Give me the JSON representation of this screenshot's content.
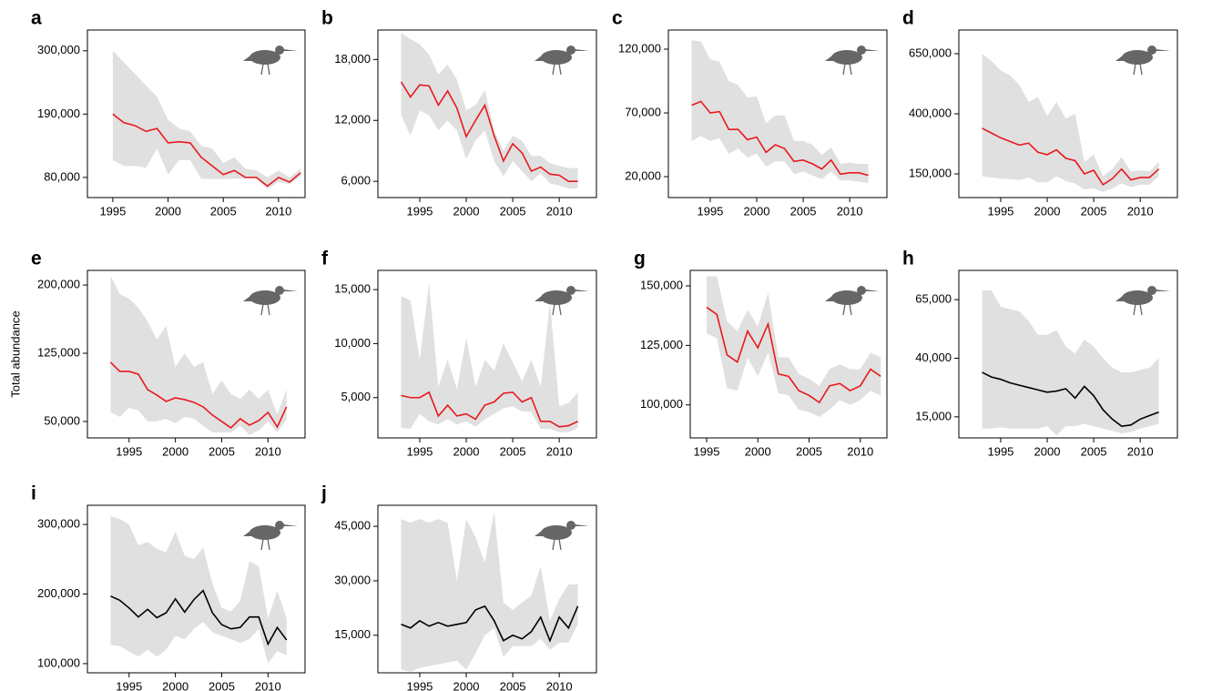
{
  "chart_data": [
    {
      "type": "line",
      "title": "a",
      "x": [
        1995,
        1996,
        1997,
        1998,
        1999,
        2000,
        2001,
        2002,
        2003,
        2004,
        2005,
        2006,
        2007,
        2008,
        2009,
        2010,
        2011,
        2012
      ],
      "values": [
        190000,
        175000,
        170000,
        160000,
        165000,
        140000,
        142000,
        140000,
        115000,
        100000,
        85000,
        92000,
        80000,
        80000,
        65000,
        80000,
        72000,
        88000
      ],
      "lower": [
        110000,
        100000,
        100000,
        97000,
        130000,
        85000,
        110000,
        110000,
        78000,
        77000,
        77000,
        78000,
        78000,
        78000,
        60000,
        72000,
        68000,
        82000
      ],
      "upper": [
        300000,
        280000,
        260000,
        240000,
        220000,
        180000,
        165000,
        160000,
        135000,
        130000,
        105000,
        115000,
        95000,
        92000,
        80000,
        92000,
        80000,
        95000
      ],
      "color": "#e8191c",
      "band_color": "#e0e0e0",
      "xlim": [
        1992.7,
        2012.4
      ],
      "xticks": [
        1995,
        2000,
        2005,
        2010
      ],
      "ylim": [
        45000,
        336000
      ],
      "yticks": [
        {
          "value": 80000,
          "label": "80,000"
        },
        {
          "value": 190000,
          "label": "190,000"
        },
        {
          "value": 300000,
          "label": "300,000"
        }
      ]
    },
    {
      "type": "line",
      "title": "b",
      "x": [
        1993,
        1994,
        1995,
        1996,
        1997,
        1998,
        1999,
        2000,
        2001,
        2002,
        2003,
        2004,
        2005,
        2006,
        2007,
        2008,
        2009,
        2010,
        2011,
        2012
      ],
      "values": [
        15800,
        14300,
        15500,
        15400,
        13500,
        14900,
        13200,
        10400,
        12000,
        13500,
        10500,
        8000,
        9700,
        8800,
        7000,
        7400,
        6700,
        6600,
        6000,
        6000
      ],
      "lower": [
        12500,
        10500,
        13000,
        12500,
        11000,
        12000,
        11000,
        8200,
        10000,
        11000,
        8000,
        6500,
        8000,
        7000,
        6000,
        6800,
        5800,
        5600,
        5300,
        5300
      ],
      "upper": [
        20600,
        20000,
        19500,
        18500,
        16500,
        17500,
        16000,
        13000,
        13500,
        15000,
        11000,
        9000,
        10500,
        10000,
        8500,
        8500,
        7800,
        7500,
        7300,
        7300
      ],
      "color": "#e8191c",
      "band_color": "#e0e0e0",
      "xlim": [
        1990.5,
        2014
      ],
      "xticks": [
        1995,
        2000,
        2005,
        2010
      ],
      "ylim": [
        4400,
        20900
      ],
      "yticks": [
        {
          "value": 6000,
          "label": "6,000"
        },
        {
          "value": 12000,
          "label": "12,000"
        },
        {
          "value": 18000,
          "label": "18,000"
        }
      ]
    },
    {
      "type": "line",
      "title": "c",
      "x": [
        1993,
        1994,
        1995,
        1996,
        1997,
        1998,
        1999,
        2000,
        2001,
        2002,
        2003,
        2004,
        2005,
        2006,
        2007,
        2008,
        2009,
        2010,
        2011,
        2012
      ],
      "values": [
        76000,
        79000,
        70000,
        71000,
        57000,
        57000,
        49000,
        51000,
        39000,
        45000,
        42000,
        32000,
        33000,
        30000,
        26000,
        33000,
        22000,
        23000,
        23000,
        21000
      ],
      "lower": [
        48000,
        52000,
        48000,
        50000,
        38000,
        42000,
        35000,
        38000,
        28000,
        32000,
        32000,
        22000,
        24000,
        21000,
        18000,
        24000,
        17000,
        17000,
        16000,
        15000
      ],
      "upper": [
        127000,
        126000,
        112000,
        110000,
        95000,
        92000,
        82000,
        83000,
        62000,
        68000,
        68000,
        48000,
        48000,
        45000,
        37000,
        43000,
        30000,
        31000,
        30000,
        30000
      ],
      "color": "#e8191c",
      "band_color": "#e0e0e0",
      "xlim": [
        1990.5,
        2014
      ],
      "xticks": [
        1995,
        2000,
        2005,
        2010
      ],
      "ylim": [
        3600,
        135000
      ],
      "yticks": [
        {
          "value": 20000,
          "label": "20,000"
        },
        {
          "value": 70000,
          "label": "70,000"
        },
        {
          "value": 120000,
          "label": "120,000"
        }
      ]
    },
    {
      "type": "line",
      "title": "d",
      "x": [
        1993,
        1994,
        1995,
        1996,
        1997,
        1998,
        1999,
        2000,
        2001,
        2002,
        2003,
        2004,
        2005,
        2006,
        2007,
        2008,
        2009,
        2010,
        2011,
        2012
      ],
      "values": [
        340000,
        320000,
        300000,
        285000,
        270000,
        278000,
        240000,
        230000,
        250000,
        215000,
        205000,
        150000,
        165000,
        105000,
        130000,
        170000,
        125000,
        135000,
        135000,
        170000
      ],
      "lower": [
        140000,
        135000,
        130000,
        128000,
        125000,
        135000,
        115000,
        115000,
        140000,
        120000,
        110000,
        85000,
        90000,
        75000,
        90000,
        110000,
        95000,
        105000,
        105000,
        140000
      ],
      "upper": [
        650000,
        620000,
        580000,
        560000,
        520000,
        450000,
        470000,
        390000,
        450000,
        380000,
        400000,
        200000,
        230000,
        140000,
        170000,
        220000,
        160000,
        165000,
        160000,
        200000
      ],
      "color": "#e8191c",
      "band_color": "#e0e0e0",
      "xlim": [
        1990.5,
        2014
      ],
      "xticks": [
        1995,
        2000,
        2005,
        2010
      ],
      "ylim": [
        51500,
        748500
      ],
      "yticks": [
        {
          "value": 150000,
          "label": "150,000"
        },
        {
          "value": 400000,
          "label": "400,000"
        },
        {
          "value": 650000,
          "label": "650,000"
        }
      ]
    },
    {
      "type": "line",
      "title": "e",
      "ylabel": "Total abundance",
      "x": [
        1993,
        1994,
        1995,
        1996,
        1997,
        1998,
        1999,
        2000,
        2001,
        2002,
        2003,
        2004,
        2005,
        2006,
        2007,
        2008,
        2009,
        2010,
        2011,
        2012
      ],
      "values": [
        115000,
        105000,
        105000,
        102000,
        85000,
        79000,
        72000,
        76000,
        74000,
        71000,
        66000,
        57000,
        50000,
        43000,
        53000,
        46000,
        51000,
        60000,
        44000,
        66000
      ],
      "lower": [
        60000,
        55000,
        65000,
        62000,
        50000,
        50000,
        53000,
        48000,
        55000,
        53000,
        45000,
        38000,
        38000,
        38000,
        45000,
        35000,
        40000,
        50000,
        38000,
        52000
      ],
      "upper": [
        210000,
        190000,
        185000,
        175000,
        160000,
        140000,
        155000,
        110000,
        125000,
        110000,
        115000,
        80000,
        95000,
        80000,
        75000,
        85000,
        75000,
        85000,
        58000,
        85000
      ],
      "color": "#e8191c",
      "band_color": "#e0e0e0",
      "xlim": [
        1990.5,
        2014
      ],
      "xticks": [
        1995,
        2000,
        2005,
        2010
      ],
      "ylim": [
        31900,
        216100
      ],
      "yticks": [
        {
          "value": 50000,
          "label": "50,000"
        },
        {
          "value": 125000,
          "label": "125,000"
        },
        {
          "value": 200000,
          "label": "200,000"
        }
      ]
    },
    {
      "type": "line",
      "title": "f",
      "x": [
        1993,
        1994,
        1995,
        1996,
        1997,
        1998,
        1999,
        2000,
        2001,
        2002,
        2003,
        2004,
        2005,
        2006,
        2007,
        2008,
        2009,
        2010,
        2011,
        2012
      ],
      "values": [
        5200,
        5000,
        5000,
        5500,
        3300,
        4300,
        3300,
        3500,
        3000,
        4300,
        4600,
        5400,
        5500,
        4600,
        5000,
        2800,
        2800,
        2300,
        2400,
        2800
      ],
      "lower": [
        2200,
        2100,
        3500,
        2800,
        2500,
        3000,
        2500,
        2800,
        2300,
        3000,
        3500,
        4000,
        4200,
        3700,
        3700,
        2100,
        2100,
        1800,
        1800,
        2200
      ],
      "upper": [
        14400,
        14000,
        8500,
        15600,
        6000,
        8500,
        5800,
        10500,
        6000,
        8500,
        7500,
        10000,
        8300,
        6500,
        8500,
        6000,
        13800,
        4200,
        4500,
        5500
      ],
      "color": "#e8191c",
      "band_color": "#e0e0e0",
      "xlim": [
        1990.5,
        2014
      ],
      "xticks": [
        1995,
        2000,
        2005,
        2010
      ],
      "ylim": [
        1270,
        16780
      ],
      "yticks": [
        {
          "value": 5000,
          "label": "5,000"
        },
        {
          "value": 10000,
          "label": "10,000"
        },
        {
          "value": 15000,
          "label": "15,000"
        }
      ]
    },
    {
      "type": "line",
      "title": "g",
      "x": [
        1995,
        1996,
        1997,
        1998,
        1999,
        2000,
        2001,
        2002,
        2003,
        2004,
        2005,
        2006,
        2007,
        2008,
        2009,
        2010,
        2011,
        2012
      ],
      "values": [
        141000,
        138000,
        121000,
        118000,
        131000,
        124000,
        134000,
        113000,
        112000,
        106000,
        104000,
        101000,
        108000,
        109000,
        106000,
        108000,
        115000,
        112000
      ],
      "lower": [
        130000,
        128000,
        107000,
        106000,
        120000,
        112000,
        122000,
        105000,
        104000,
        98000,
        97000,
        95000,
        98000,
        102000,
        100000,
        102000,
        106000,
        104000
      ],
      "upper": [
        154000,
        154000,
        135000,
        131000,
        140000,
        133000,
        147000,
        120000,
        120000,
        113000,
        111000,
        108000,
        115000,
        117000,
        115000,
        115000,
        122000,
        120000
      ],
      "color": "#e8191c",
      "band_color": "#e0e0e0",
      "xlim": [
        1993.4,
        2012.6
      ],
      "xticks": [
        1995,
        2000,
        2005,
        2010
      ],
      "ylim": [
        86150,
        156500
      ],
      "yticks": [
        {
          "value": 100000,
          "label": "100,000"
        },
        {
          "value": 125000,
          "label": "125,000"
        },
        {
          "value": 150000,
          "label": "150,000"
        }
      ]
    },
    {
      "type": "line",
      "title": "h",
      "x": [
        1993,
        1994,
        1995,
        1996,
        1997,
        1998,
        1999,
        2000,
        2001,
        2002,
        2003,
        2004,
        2005,
        2006,
        2007,
        2008,
        2009,
        2010,
        2011,
        2012
      ],
      "values": [
        34000,
        32000,
        31000,
        29500,
        28500,
        27500,
        26500,
        25500,
        26000,
        27000,
        23000,
        28000,
        24000,
        18000,
        14000,
        11000,
        11500,
        14000,
        15500,
        17000
      ],
      "lower": [
        10000,
        10000,
        10500,
        10000,
        10000,
        10000,
        10000,
        11000,
        7000,
        11000,
        11000,
        12000,
        11000,
        10000,
        9000,
        8000,
        8500,
        10000,
        11000,
        12000
      ],
      "upper": [
        69000,
        69000,
        62000,
        61000,
        60000,
        56000,
        50000,
        50000,
        52000,
        45000,
        42000,
        48000,
        45000,
        40000,
        36000,
        34000,
        34000,
        35000,
        36000,
        40000
      ],
      "color": "#000000",
      "band_color": "#e0e0e0",
      "xlim": [
        1990.5,
        2014
      ],
      "xticks": [
        1995,
        2000,
        2005,
        2010
      ],
      "ylim": [
        6000,
        77500
      ],
      "yticks": [
        {
          "value": 15000,
          "label": "15,000"
        },
        {
          "value": 40000,
          "label": "40,000"
        },
        {
          "value": 65000,
          "label": "65,000"
        }
      ]
    },
    {
      "type": "line",
      "title": "i",
      "x": [
        1993,
        1994,
        1995,
        1996,
        1997,
        1998,
        1999,
        2000,
        2001,
        2002,
        2003,
        2004,
        2005,
        2006,
        2007,
        2008,
        2009,
        2010,
        2011,
        2012
      ],
      "values": [
        197000,
        191000,
        180000,
        167000,
        178000,
        166000,
        173000,
        193000,
        174000,
        192000,
        205000,
        173000,
        156000,
        150000,
        152000,
        167000,
        167000,
        128000,
        152000,
        134000
      ],
      "lower": [
        127000,
        125000,
        117000,
        110000,
        120000,
        110000,
        120000,
        140000,
        135000,
        150000,
        160000,
        145000,
        140000,
        135000,
        130000,
        135000,
        150000,
        100000,
        118000,
        112000
      ],
      "upper": [
        312000,
        308000,
        300000,
        270000,
        275000,
        265000,
        260000,
        290000,
        255000,
        250000,
        267000,
        215000,
        180000,
        175000,
        190000,
        247000,
        240000,
        165000,
        205000,
        165000
      ],
      "color": "#000000",
      "band_color": "#e0e0e0",
      "xlim": [
        1990.5,
        2014
      ],
      "xticks": [
        1995,
        2000,
        2005,
        2010
      ],
      "ylim": [
        86800,
        327600
      ],
      "yticks": [
        {
          "value": 100000,
          "label": "100,000"
        },
        {
          "value": 200000,
          "label": "200,000"
        },
        {
          "value": 300000,
          "label": "300,000"
        }
      ]
    },
    {
      "type": "line",
      "title": "j",
      "x": [
        1993,
        1994,
        1995,
        1996,
        1997,
        1998,
        1999,
        2000,
        2001,
        2002,
        2003,
        2004,
        2005,
        2006,
        2007,
        2008,
        2009,
        2010,
        2011,
        2012
      ],
      "values": [
        18000,
        17000,
        19000,
        17500,
        18500,
        17500,
        18000,
        18500,
        22000,
        23000,
        19000,
        13500,
        15000,
        14000,
        16000,
        20000,
        13500,
        20000,
        17000,
        23000
      ],
      "lower": [
        5500,
        5000,
        6000,
        6500,
        7000,
        7500,
        8000,
        5500,
        10000,
        15000,
        17000,
        9000,
        12000,
        12000,
        12000,
        14000,
        11000,
        13000,
        13000,
        18000
      ],
      "upper": [
        47000,
        46000,
        47000,
        46000,
        47000,
        46000,
        30000,
        47000,
        42000,
        35000,
        49000,
        24000,
        22000,
        24000,
        26000,
        34000,
        19000,
        25000,
        29000,
        29000
      ],
      "color": "#000000",
      "band_color": "#e0e0e0",
      "xlim": [
        1990.5,
        2014
      ],
      "xticks": [
        1995,
        2000,
        2005,
        2010
      ],
      "ylim": [
        4660,
        50800
      ],
      "yticks": [
        {
          "value": 15000,
          "label": "15,000"
        },
        {
          "value": 30000,
          "label": "30,000"
        },
        {
          "value": 45000,
          "label": "45,000"
        }
      ]
    }
  ]
}
